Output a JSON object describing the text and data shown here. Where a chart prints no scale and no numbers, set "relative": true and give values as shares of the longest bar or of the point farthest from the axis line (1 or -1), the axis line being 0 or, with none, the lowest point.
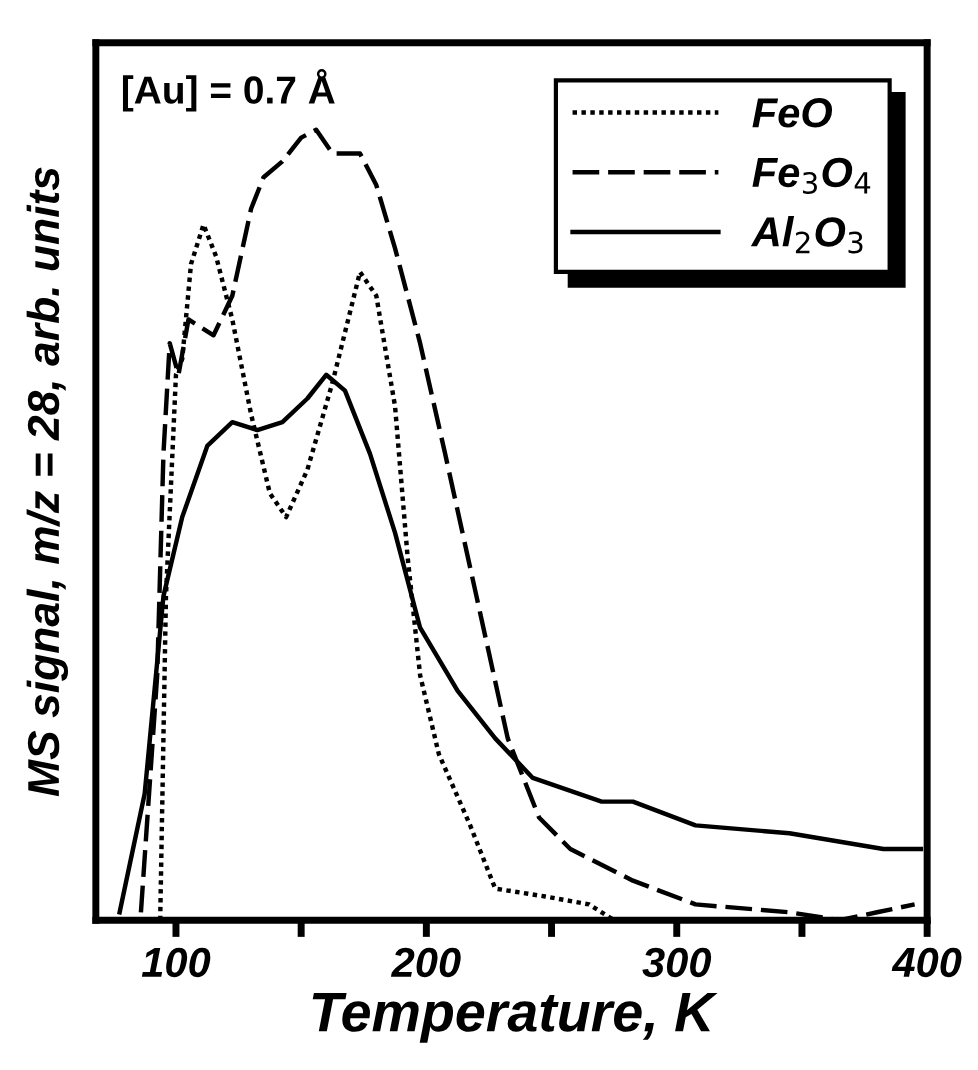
{
  "chart_data": {
    "type": "line",
    "relative": true,
    "xlabel": "Temperature, K",
    "ylabel": "MS signal, m/z = 28, arb. units",
    "annotations": [
      "[Au] = 0.7 Å"
    ],
    "xlim": [
      68,
      400
    ],
    "xticks": [
      100,
      {
        "value": 150,
        "label": null
      },
      200,
      {
        "value": 250,
        "label": null
      },
      300,
      {
        "value": 350,
        "label": null
      },
      400
    ],
    "tick_labels": "x",
    "grid": false,
    "legend": "top right",
    "marker": "none",
    "series": [
      {
        "name": "FeO",
        "color": "#000000",
        "line_style": "dotted",
        "x": [
          93.7,
          96,
          100,
          102.5,
          106,
          111,
          116,
          122.5,
          130,
          137.5,
          144,
          152.5,
          162.5,
          173.5,
          180,
          187.5,
          192.5,
          197.5,
          205,
          217.5,
          227.5,
          247.5,
          265,
          275
        ],
        "values": [
          0,
          0.41,
          0.69,
          0.71,
          0.83,
          0.88,
          0.84,
          0.76,
          0.64,
          0.54,
          0.51,
          0.57,
          0.68,
          0.82,
          0.79,
          0.65,
          0.46,
          0.31,
          0.21,
          0.12,
          0.04,
          0.03,
          0.02,
          0
        ]
      },
      {
        "name": "Fe$_{3}$O$_{4}$",
        "color": "#000000",
        "line_style": "dashed",
        "x": [
          86,
          92.5,
          95,
          97.5,
          101,
          105,
          115,
          122.5,
          130,
          135,
          142.5,
          150,
          156,
          162.5,
          173.5,
          180,
          187.5,
          197.5,
          207.5,
          220,
          232.5,
          245,
          257.5,
          282.5,
          307.5,
          345,
          365,
          380,
          395
        ],
        "values": [
          0.01,
          0.31,
          0.59,
          0.73,
          0.69,
          0.76,
          0.74,
          0.79,
          0.9,
          0.94,
          0.96,
          0.99,
          1,
          0.97,
          0.97,
          0.93,
          0.85,
          0.73,
          0.59,
          0.41,
          0.23,
          0.13,
          0.09,
          0.05,
          0.02,
          0.01,
          0,
          0.01,
          0.02
        ]
      },
      {
        "name": "Al$_{2}$O$_{3}$",
        "color": "#000000",
        "line_style": "solid",
        "x": [
          77.5,
          87.5,
          95,
          102.5,
          112.5,
          122.5,
          132.5,
          142.5,
          152.5,
          160,
          167.5,
          177.5,
          187.5,
          197.5,
          212.5,
          227.5,
          242.5,
          270,
          282.5,
          307.5,
          345,
          382.5,
          397.5
        ],
        "values": [
          0.01,
          0.16,
          0.41,
          0.51,
          0.6,
          0.63,
          0.62,
          0.63,
          0.66,
          0.69,
          0.67,
          0.59,
          0.49,
          0.37,
          0.29,
          0.23,
          0.18,
          0.15,
          0.15,
          0.12,
          0.11,
          0.09,
          0.09
        ]
      }
    ]
  }
}
